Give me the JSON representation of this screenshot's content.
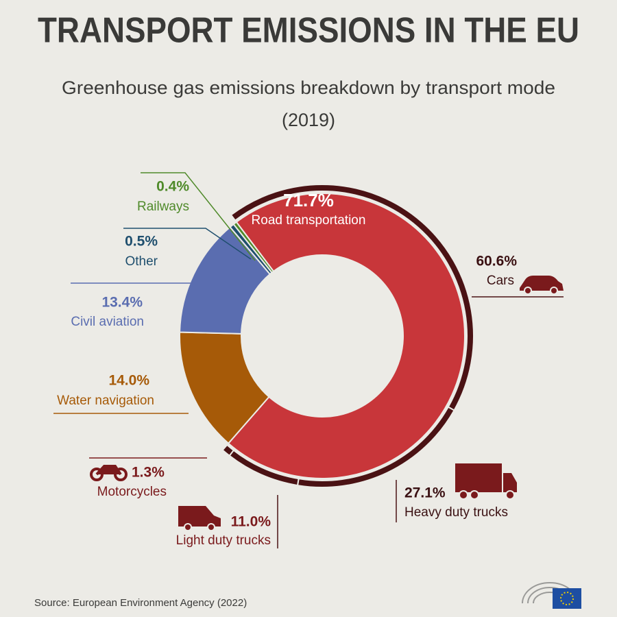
{
  "chart_data": {
    "type": "donut",
    "title": "TRANSPORT EMISSIONS IN THE EU",
    "subtitle": [
      "Greenhouse gas emissions breakdown by transport mode",
      "(2019)"
    ],
    "source": "Source: European Environment Agency (2022)",
    "categories": [
      "Road transportation",
      "Water navigation",
      "Civil aviation",
      "Other",
      "Railways"
    ],
    "values": [
      71.7,
      14.0,
      13.4,
      0.5,
      0.4
    ],
    "value_labels": [
      "71.7%",
      "14.0%",
      "13.4%",
      "0.5%",
      "0.4%"
    ],
    "colors": [
      "#c8363a",
      "#a65a08",
      "#5a6db0",
      "#1f4f6e",
      "#4f8a2a"
    ],
    "breakdown": {
      "categories": [
        "Cars",
        "Heavy duty trucks",
        "Light duty trucks",
        "Motorcycles"
      ],
      "values": [
        60.6,
        27.1,
        11.0,
        1.3
      ],
      "value_labels": [
        "60.6%",
        "27.1%",
        "11.0%",
        "1.3%"
      ],
      "color": "#4a1214"
    }
  }
}
